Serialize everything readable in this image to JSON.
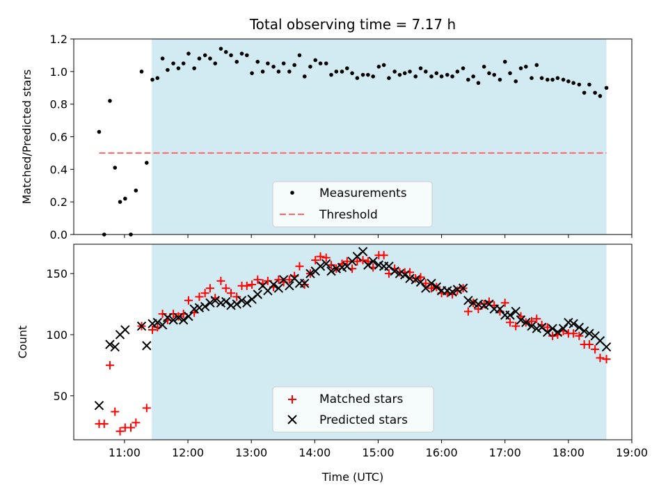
{
  "figure": {
    "title": "Total observing time = 7.17 h",
    "xlabel": "Time (UTC)",
    "x_ticks": [
      11,
      12,
      13,
      14,
      15,
      16,
      17,
      18,
      19
    ],
    "x_tick_labels": [
      "11:00",
      "12:00",
      "13:00",
      "14:00",
      "15:00",
      "16:00",
      "17:00",
      "18:00",
      "19:00"
    ],
    "xlim": [
      10.2,
      19.0
    ],
    "shaded_span": [
      11.43,
      18.6
    ],
    "colors": {
      "shade": "#add8e6",
      "threshold": "#ff6666",
      "matched": "#ff0000",
      "predicted": "#000000",
      "measurement": "#000000"
    }
  },
  "chart_data": [
    {
      "type": "scatter",
      "ylabel": "Matched/Predicted stars",
      "ylim": [
        0.0,
        1.2
      ],
      "y_ticks": [
        0.0,
        0.2,
        0.4,
        0.6,
        0.8,
        1.0,
        1.2
      ],
      "y_tick_labels": [
        "0.0",
        "0.2",
        "0.4",
        "0.6",
        "0.8",
        "1.0",
        "1.2"
      ],
      "legend": {
        "placement": "lower center",
        "entries": [
          "Measurements",
          "Threshold"
        ]
      },
      "threshold": {
        "name": "Threshold",
        "value": 0.5,
        "x_range": [
          10.6,
          18.6
        ]
      },
      "series": [
        {
          "name": "Measurements",
          "x": [
            10.6,
            10.68,
            10.77,
            10.85,
            10.93,
            11.01,
            11.1,
            11.18,
            11.27,
            11.35,
            11.44,
            11.52,
            11.6,
            11.68,
            11.77,
            11.85,
            11.93,
            12.01,
            12.1,
            12.18,
            12.27,
            12.35,
            12.43,
            12.52,
            12.6,
            12.68,
            12.77,
            12.85,
            12.93,
            13.01,
            13.1,
            13.18,
            13.26,
            13.35,
            13.43,
            13.51,
            13.6,
            13.68,
            13.76,
            13.84,
            13.93,
            14.01,
            14.09,
            14.18,
            14.26,
            14.34,
            14.43,
            14.51,
            14.59,
            14.67,
            14.76,
            14.84,
            14.92,
            15.01,
            15.09,
            15.17,
            15.26,
            15.34,
            15.42,
            15.5,
            15.59,
            15.67,
            15.75,
            15.84,
            15.92,
            16.0,
            16.09,
            16.17,
            16.25,
            16.34,
            16.42,
            16.5,
            16.58,
            16.67,
            16.75,
            16.83,
            16.92,
            17.0,
            17.08,
            17.17,
            17.25,
            17.33,
            17.42,
            17.5,
            17.58,
            17.67,
            17.75,
            17.83,
            17.92,
            18.0,
            18.08,
            18.17,
            18.25,
            18.33,
            18.42,
            18.5,
            18.6
          ],
          "values": [
            0.63,
            0.0,
            0.82,
            0.41,
            0.2,
            0.22,
            0.0,
            0.27,
            1.0,
            0.44,
            0.95,
            0.96,
            1.08,
            1.01,
            1.05,
            1.02,
            1.05,
            1.11,
            1.02,
            1.08,
            1.1,
            1.08,
            1.05,
            1.14,
            1.12,
            1.1,
            1.06,
            1.11,
            1.1,
            0.99,
            1.06,
            1.0,
            1.05,
            1.03,
            1.0,
            1.05,
            1.0,
            1.04,
            1.1,
            0.97,
            1.03,
            1.07,
            1.05,
            1.05,
            0.98,
            1.0,
            1.0,
            1.02,
            0.99,
            0.96,
            0.98,
            0.98,
            0.97,
            1.03,
            1.04,
            0.96,
            1.0,
            0.98,
            0.99,
            1.0,
            0.97,
            1.02,
            1.0,
            0.97,
            0.99,
            0.97,
            0.98,
            0.97,
            1.0,
            1.02,
            0.95,
            0.97,
            0.93,
            1.03,
            0.99,
            0.98,
            0.95,
            1.06,
            0.99,
            0.94,
            1.02,
            1.03,
            0.96,
            1.04,
            0.96,
            0.95,
            0.95,
            0.96,
            0.95,
            0.94,
            0.93,
            0.92,
            0.87,
            0.92,
            0.87,
            0.85,
            0.9
          ]
        }
      ]
    },
    {
      "type": "scatter",
      "ylabel": "Count",
      "ylim": [
        14,
        174
      ],
      "y_ticks": [
        50,
        100,
        150
      ],
      "y_tick_labels": [
        "50",
        "100",
        "150"
      ],
      "legend": {
        "placement": "lower center",
        "entries": [
          "Matched stars",
          "Predicted stars"
        ]
      },
      "series": [
        {
          "name": "Matched stars",
          "marker": "plus",
          "x": [
            10.6,
            10.68,
            10.77,
            10.85,
            10.93,
            11.01,
            11.1,
            11.18,
            11.27,
            11.35,
            11.44,
            11.52,
            11.6,
            11.68,
            11.77,
            11.85,
            11.93,
            12.01,
            12.1,
            12.18,
            12.27,
            12.35,
            12.43,
            12.52,
            12.6,
            12.68,
            12.77,
            12.85,
            12.93,
            13.01,
            13.1,
            13.18,
            13.26,
            13.35,
            13.43,
            13.51,
            13.6,
            13.68,
            13.76,
            13.84,
            13.93,
            14.01,
            14.09,
            14.18,
            14.26,
            14.34,
            14.43,
            14.51,
            14.59,
            14.67,
            14.76,
            14.84,
            14.92,
            15.01,
            15.09,
            15.17,
            15.26,
            15.34,
            15.42,
            15.5,
            15.59,
            15.67,
            15.75,
            15.84,
            15.92,
            16.0,
            16.09,
            16.17,
            16.25,
            16.34,
            16.42,
            16.5,
            16.58,
            16.67,
            16.75,
            16.83,
            16.92,
            17.0,
            17.08,
            17.17,
            17.25,
            17.33,
            17.42,
            17.5,
            17.58,
            17.67,
            17.75,
            17.83,
            17.92,
            18.0,
            18.08,
            18.17,
            18.25,
            18.33,
            18.42,
            18.5,
            18.6
          ],
          "values": [
            27,
            27,
            75,
            37,
            21,
            24,
            24,
            28,
            107,
            40,
            104,
            106,
            117,
            112,
            117,
            115,
            117,
            128,
            118,
            131,
            134,
            138,
            130,
            144,
            138,
            134,
            131,
            140,
            140,
            141,
            145,
            142,
            144,
            139,
            145,
            143,
            145,
            148,
            156,
            141,
            150,
            161,
            164,
            163,
            157,
            154,
            158,
            160,
            154,
            160,
            161,
            160,
            155,
            165,
            165,
            150,
            154,
            151,
            151,
            151,
            146,
            147,
            142,
            138,
            139,
            134,
            134,
            133,
            136,
            138,
            119,
            126,
            121,
            125,
            127,
            124,
            119,
            126,
            110,
            107,
            115,
            110,
            111,
            113,
            108,
            106,
            99,
            100,
            103,
            101,
            101,
            99,
            92,
            92,
            88,
            81,
            80
          ]
        },
        {
          "name": "Predicted stars",
          "marker": "x",
          "x": [
            10.6,
            10.77,
            10.85,
            10.93,
            11.01,
            11.27,
            11.35,
            11.44,
            11.52,
            11.6,
            11.68,
            11.77,
            11.85,
            11.93,
            12.01,
            12.1,
            12.18,
            12.27,
            12.35,
            12.43,
            12.52,
            12.6,
            12.68,
            12.77,
            12.85,
            12.93,
            13.01,
            13.1,
            13.18,
            13.26,
            13.35,
            13.43,
            13.51,
            13.6,
            13.68,
            13.76,
            13.84,
            13.93,
            14.01,
            14.09,
            14.18,
            14.26,
            14.34,
            14.43,
            14.51,
            14.59,
            14.67,
            14.76,
            14.84,
            14.92,
            15.01,
            15.09,
            15.17,
            15.26,
            15.34,
            15.42,
            15.5,
            15.59,
            15.67,
            15.75,
            15.84,
            15.92,
            16.0,
            16.09,
            16.17,
            16.25,
            16.34,
            16.42,
            16.5,
            16.58,
            16.67,
            16.75,
            16.83,
            16.92,
            17.0,
            17.08,
            17.17,
            17.25,
            17.33,
            17.42,
            17.5,
            17.58,
            17.67,
            17.75,
            17.83,
            17.92,
            18.0,
            18.08,
            18.17,
            18.25,
            18.33,
            18.42,
            18.5,
            18.6
          ],
          "values": [
            42,
            92,
            90,
            100,
            104,
            107,
            91,
            109,
            110,
            108,
            114,
            112,
            114,
            112,
            115,
            121,
            122,
            123,
            126,
            128,
            126,
            127,
            124,
            125,
            128,
            126,
            129,
            133,
            140,
            136,
            141,
            138,
            145,
            140,
            146,
            142,
            142,
            150,
            152,
            156,
            158,
            152,
            154,
            155,
            156,
            160,
            164,
            168,
            157,
            160,
            157,
            156,
            156,
            152,
            150,
            149,
            146,
            145,
            143,
            138,
            142,
            139,
            136,
            136,
            135,
            137,
            138,
            128,
            126,
            125,
            124,
            125,
            121,
            121,
            116,
            116,
            119,
            112,
            110,
            107,
            105,
            106,
            102,
            105,
            102,
            105,
            110,
            109,
            106,
            103,
            101,
            99,
            95,
            90
          ]
        }
      ]
    }
  ]
}
